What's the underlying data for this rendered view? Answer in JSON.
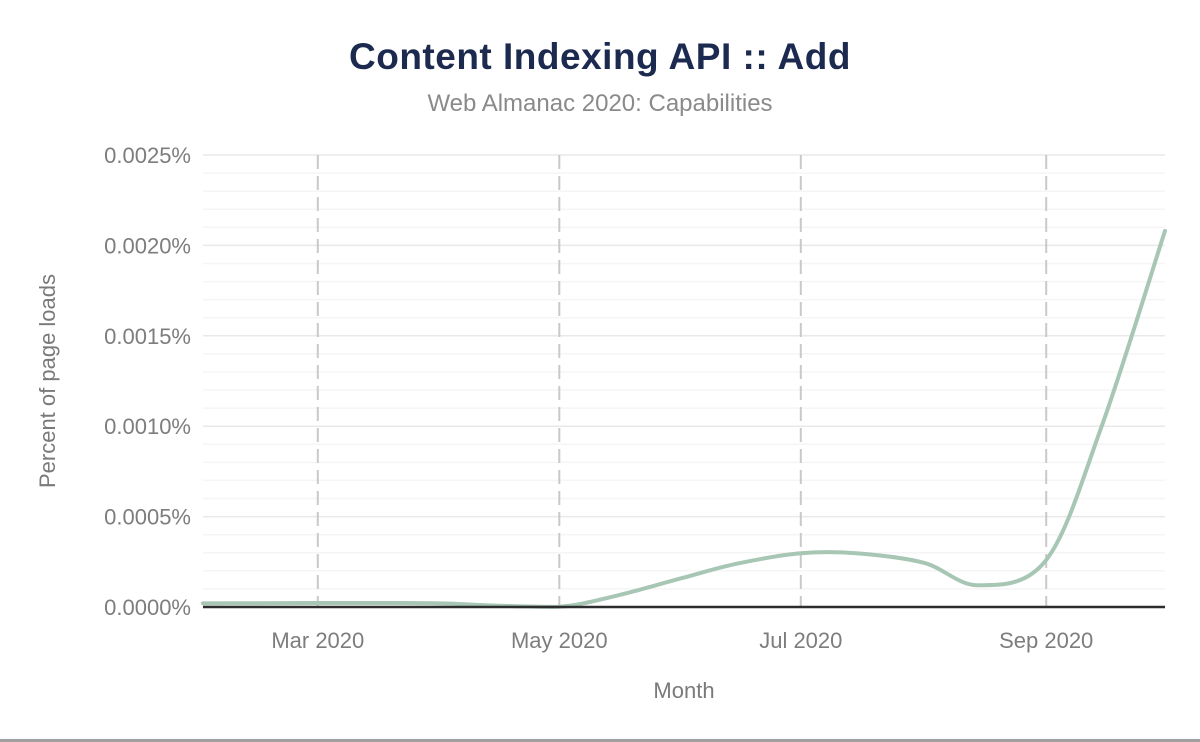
{
  "header": {
    "title": "Content Indexing API :: Add",
    "subtitle": "Web Almanac 2020: Capabilities"
  },
  "chart_data": {
    "type": "line",
    "title": "Content Indexing API :: Add",
    "subtitle": "Web Almanac 2020: Capabilities",
    "xlabel": "Month",
    "ylabel": "Percent of page loads",
    "legend": "none",
    "grid": "horizontal minor gridlines on; vertical dashed gridlines at x ticks",
    "ylim": [
      0,
      0.0025
    ],
    "y_unit": "percent of page loads",
    "y_minor_step": 0.0001,
    "y_major_step": 0.0005,
    "y_tick_labels": [
      "0.0000%",
      "0.0005%",
      "0.0010%",
      "0.0015%",
      "0.0020%",
      "0.0025%"
    ],
    "y_tick_values": [
      0,
      0.0005,
      0.001,
      0.0015,
      0.002,
      0.0025
    ],
    "x_range": [
      "2020-02-01",
      "2020-10-01"
    ],
    "x_ticks": [
      {
        "date": "2020-03-01",
        "label": "Mar 2020"
      },
      {
        "date": "2020-05-01",
        "label": "May 2020"
      },
      {
        "date": "2020-07-01",
        "label": "Jul 2020"
      },
      {
        "date": "2020-09-01",
        "label": "Sep 2020"
      }
    ],
    "series": [
      {
        "name": "Content Indexing API :: Add",
        "color": "#a7c6b4",
        "points": [
          {
            "date": "2020-02-01",
            "value": 2e-05
          },
          {
            "date": "2020-02-15",
            "value": 2.1e-05
          },
          {
            "date": "2020-03-01",
            "value": 2.2e-05
          },
          {
            "date": "2020-03-15",
            "value": 2.2e-05
          },
          {
            "date": "2020-04-01",
            "value": 2e-05
          },
          {
            "date": "2020-04-15",
            "value": 8e-06
          },
          {
            "date": "2020-05-01",
            "value": 1e-06
          },
          {
            "date": "2020-05-15",
            "value": 6e-05
          },
          {
            "date": "2020-06-01",
            "value": 0.00016
          },
          {
            "date": "2020-06-15",
            "value": 0.00024
          },
          {
            "date": "2020-07-01",
            "value": 0.000297
          },
          {
            "date": "2020-07-15",
            "value": 0.000297
          },
          {
            "date": "2020-08-01",
            "value": 0.000245
          },
          {
            "date": "2020-08-15",
            "value": 0.00012
          },
          {
            "date": "2020-09-01",
            "value": 0.00026
          },
          {
            "date": "2020-09-15",
            "value": 0.001
          },
          {
            "date": "2020-10-01",
            "value": 0.00208
          }
        ]
      }
    ]
  },
  "colors": {
    "title": "#1b2a4e",
    "subtitle": "#8a8a8a",
    "tick_label": "#7d7d7d",
    "axis_title": "#7a7a7a",
    "line": "#a7c6b4",
    "vertical_grid": "#c9c9c9",
    "minor_grid": "#f5f5f5",
    "major_grid": "#e9e9e9",
    "axis_line": "#2d2d2d",
    "bottom_bar": "#a0a0a0",
    "background": "#ffffff"
  }
}
